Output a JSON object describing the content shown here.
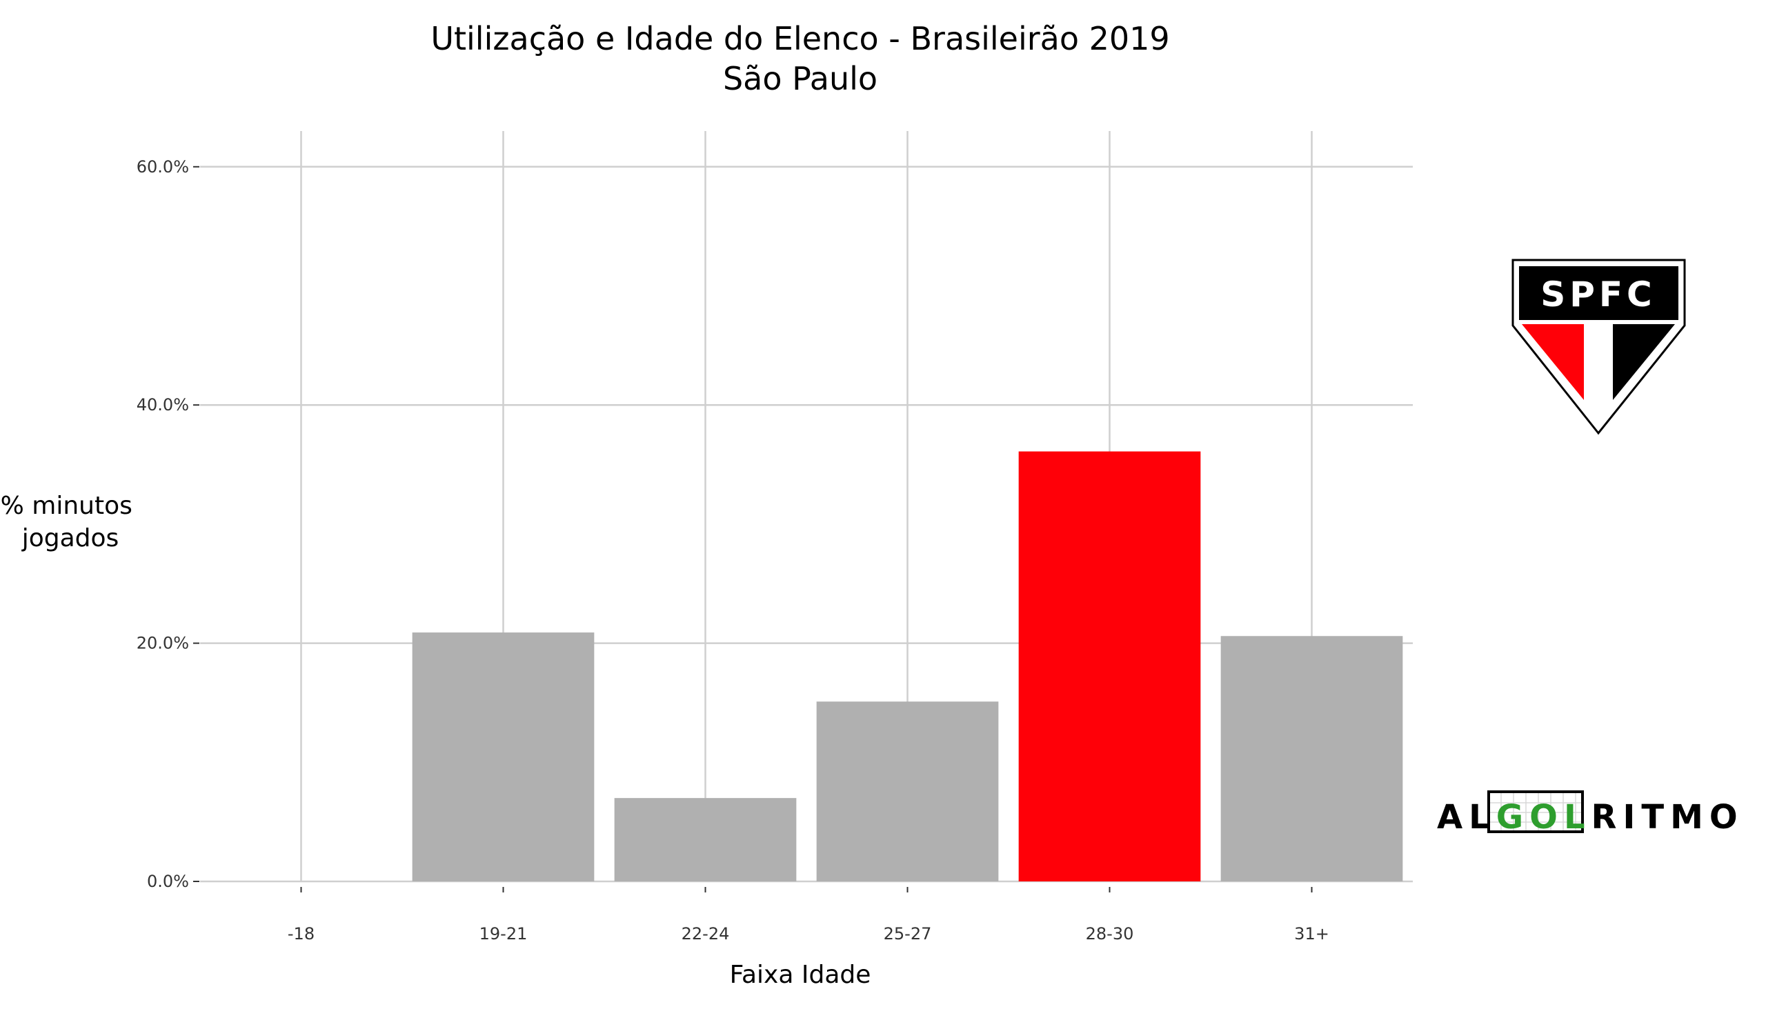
{
  "chart_data": {
    "type": "bar",
    "title": "Utilização e Idade do Elenco - Brasileirão 2019",
    "subtitle": "São Paulo",
    "xlabel": "Faixa Idade",
    "ylabel_lines": [
      "% minutos",
      "jogados"
    ],
    "categories": [
      "-18",
      "19-21",
      "22-24",
      "25-27",
      "28-30",
      "31+"
    ],
    "values": [
      0,
      20.9,
      7.0,
      15.1,
      36.1,
      20.6
    ],
    "highlight_category": "28-30",
    "colors": {
      "default": "#b0b0b0",
      "highlight": "#ff0008"
    },
    "ylim": [
      0,
      63
    ],
    "yticks": [
      0,
      20,
      40,
      60
    ],
    "ytick_labels": [
      "0.0%",
      "20.0%",
      "40.0%",
      "60.0%"
    ],
    "grid": true,
    "legend": "none"
  },
  "crest": {
    "text": "SPFC",
    "colors": {
      "red": "#ff0008",
      "black": "#000000",
      "white": "#ffffff"
    }
  },
  "brand": {
    "prefix": "AL",
    "middle": "GOL",
    "suffix": "RITMO",
    "colors": {
      "text": "#000000",
      "middle": "#2e9e2e"
    }
  }
}
